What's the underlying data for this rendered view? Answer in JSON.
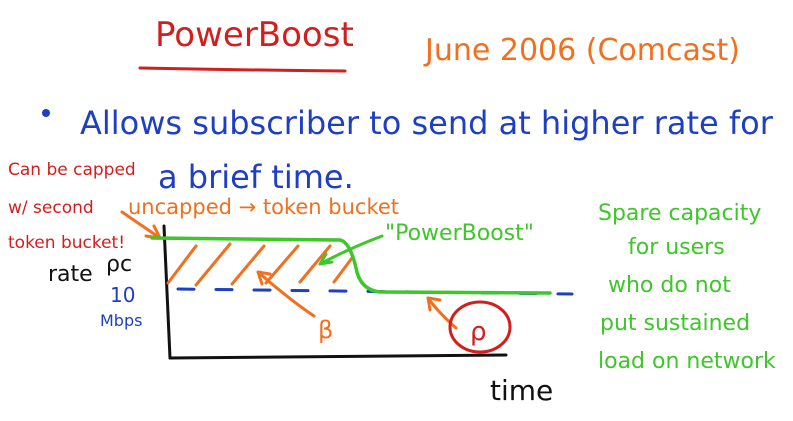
{
  "title": "PowerBoost",
  "date_note": "June 2006 (Comcast)",
  "bullet": {
    "line1": "Allows subscriber to send at higher rate for",
    "line2": "a brief time."
  },
  "annotations": {
    "capped_line1": "Can be capped",
    "capped_line2": "w/ second",
    "capped_line3": "token bucket!",
    "uncapped": "uncapped → token bucket",
    "powerboost_quote": "\"PowerBoost\"",
    "beta": "β",
    "rho": "ρ",
    "rho_c": "ρc",
    "spare_line1": "Spare capacity",
    "spare_line2": "for users",
    "spare_line3": "who do not",
    "spare_line4": "put sustained",
    "spare_line5": "load on network"
  },
  "axes": {
    "y_label": "rate",
    "x_label": "time",
    "ten": "10",
    "mbps": "Mbps"
  },
  "colors": {
    "title": "#d21e1e",
    "orange": "#f07020",
    "blue": "#1f3fc2",
    "green": "#3ec62a",
    "black": "#111111",
    "red": "#d21e1e"
  }
}
